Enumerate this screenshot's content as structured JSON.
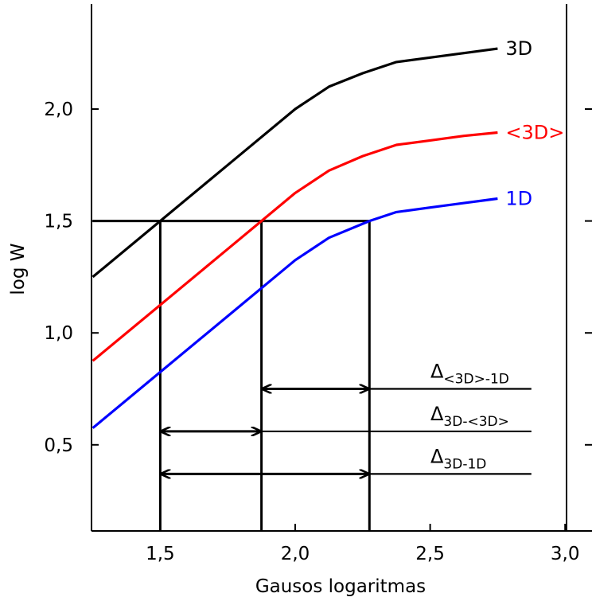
{
  "chart_data": {
    "type": "line",
    "title": "",
    "xlabel": "Gausos logaritmas",
    "ylabel": "log W",
    "xlim": [
      1.25,
      3.0
    ],
    "ylim": [
      0.1,
      2.3
    ],
    "grid": false,
    "legend": "none",
    "xticks": [
      {
        "value": 1.5,
        "label": "1,5"
      },
      {
        "value": 2.0,
        "label": "2,0"
      },
      {
        "value": 2.5,
        "label": "2,5"
      },
      {
        "value": 3.0,
        "label": "3,0"
      }
    ],
    "yticks": [
      {
        "value": 0.5,
        "label": "0,5"
      },
      {
        "value": 1.0,
        "label": "1,0"
      },
      {
        "value": 1.5,
        "label": "1,5"
      },
      {
        "value": 2.0,
        "label": "2,0"
      }
    ],
    "series": [
      {
        "name": "3D",
        "color": "#000000",
        "x": [
          1.25,
          1.5,
          1.75,
          2.0,
          2.125,
          2.25,
          2.375,
          2.5,
          2.625,
          2.75
        ],
        "y": [
          1.25,
          1.5,
          1.75,
          2.0,
          2.1,
          2.16,
          2.21,
          2.23,
          2.25,
          2.27
        ]
      },
      {
        "name": "<3D>",
        "color": "#ff0000",
        "x": [
          1.25,
          1.5,
          1.75,
          1.875,
          2.0,
          2.125,
          2.25,
          2.375,
          2.5,
          2.625,
          2.75
        ],
        "y": [
          0.875,
          1.125,
          1.375,
          1.5,
          1.625,
          1.725,
          1.79,
          1.84,
          1.86,
          1.88,
          1.895
        ]
      },
      {
        "name": "1D",
        "color": "#0000ff",
        "x": [
          1.25,
          1.5,
          1.75,
          2.0,
          2.125,
          2.275,
          2.375,
          2.5,
          2.625,
          2.75
        ],
        "y": [
          0.575,
          0.825,
          1.075,
          1.325,
          1.425,
          1.5,
          1.54,
          1.56,
          1.58,
          1.6
        ]
      }
    ],
    "reference_lines": {
      "horizontal_y": 1.5,
      "horizontal_x_range": [
        1.25,
        2.275
      ],
      "vertical_x": [
        1.5,
        1.875,
        2.275
      ]
    },
    "annotations": [
      {
        "base": "Δ",
        "subscript": "<3D>-1D",
        "from_x": 1.875,
        "to_x": 2.275,
        "y": 0.75,
        "line_to_x": 2.875
      },
      {
        "base": "Δ",
        "subscript": "3D-<3D>",
        "from_x": 1.5,
        "to_x": 1.875,
        "y": 0.56,
        "line_to_x": 2.875
      },
      {
        "base": "Δ",
        "subscript": "3D-1D",
        "from_x": 1.5,
        "to_x": 2.275,
        "y": 0.37,
        "line_to_x": 2.875
      }
    ]
  }
}
